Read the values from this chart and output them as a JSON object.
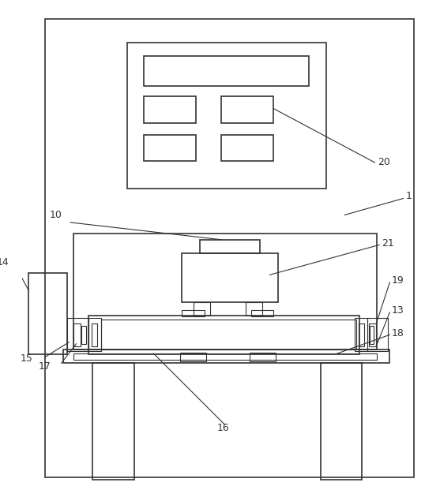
{
  "bg_color": "#ffffff",
  "line_color": "#333333",
  "lw_main": 1.2,
  "lw_thin": 0.8,
  "fig_width": 5.57,
  "fig_height": 6.35,
  "dpi": 100
}
